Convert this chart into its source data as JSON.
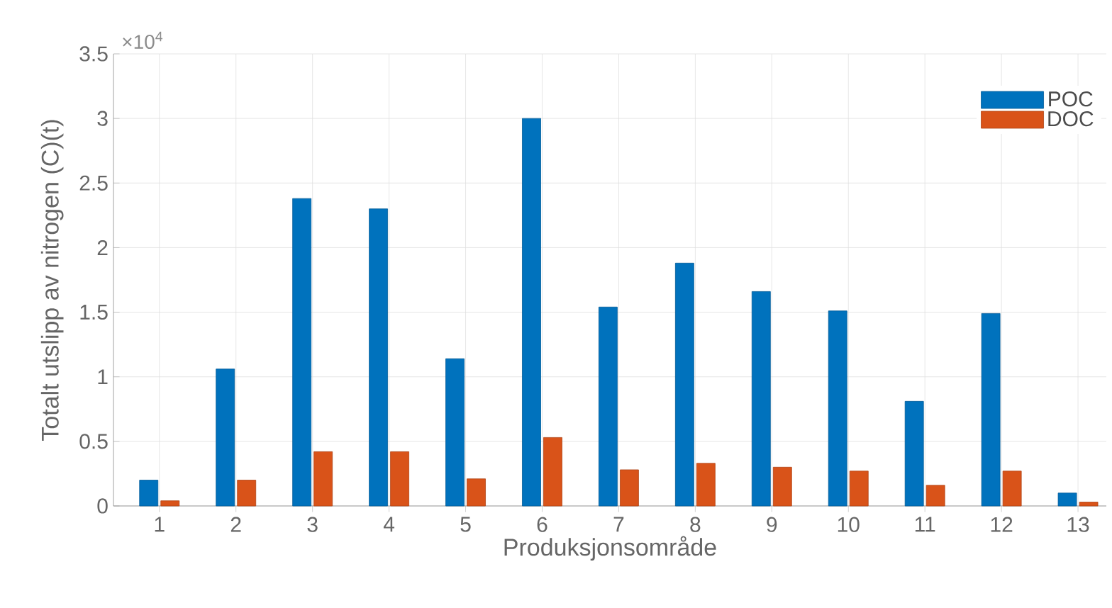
{
  "chart_data": {
    "type": "bar",
    "xlabel": "Produksjonsområde",
    "ylabel": "Totalt utslipp av nitrogen (C)(t)",
    "annotations": [
      "×10$^{4}$"
    ],
    "categories": [
      "1",
      "2",
      "3",
      "4",
      "5",
      "6",
      "7",
      "8",
      "9",
      "10",
      "11",
      "12",
      "13"
    ],
    "series": [
      {
        "name": "POC",
        "color": "#0072bd",
        "values": [
          0.2,
          1.06,
          2.38,
          2.3,
          1.14,
          3.0,
          1.54,
          1.88,
          1.66,
          1.51,
          0.81,
          1.49,
          0.1
        ]
      },
      {
        "name": "DOC",
        "color": "#d95319",
        "values": [
          0.04,
          0.2,
          0.42,
          0.42,
          0.21,
          0.53,
          0.28,
          0.33,
          0.3,
          0.27,
          0.16,
          0.27,
          0.03
        ]
      }
    ],
    "ylim": [
      0,
      3.5
    ],
    "yticks": [
      0,
      0.5,
      1,
      1.5,
      2,
      2.5,
      3,
      3.5
    ],
    "grid": true,
    "legend": "top right"
  }
}
